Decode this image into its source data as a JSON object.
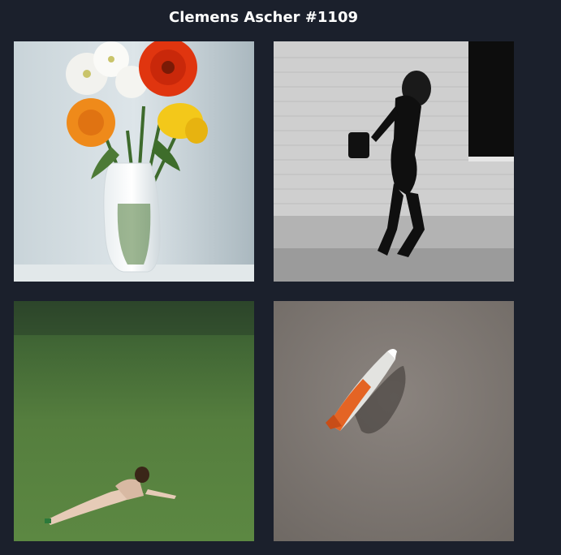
{
  "header": {
    "title": "Clemens Ascher #1109"
  },
  "gallery": {
    "images": [
      {
        "subject": "flowers-in-white-vase"
      },
      {
        "subject": "woman-bending-by-brick-wall"
      },
      {
        "subject": "woman-lying-on-grass"
      },
      {
        "subject": "rocket-on-gray-surface"
      }
    ]
  },
  "colors": {
    "background": "#1b202c",
    "title": "#ffffff"
  }
}
